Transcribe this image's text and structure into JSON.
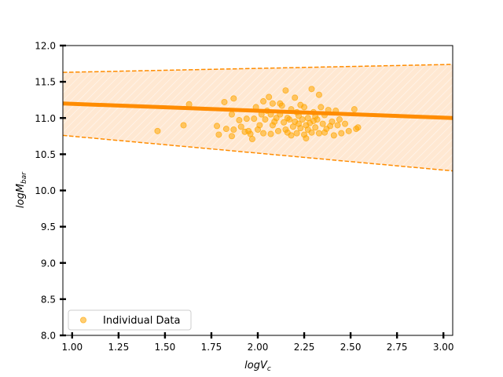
{
  "chart_data": {
    "type": "scatter",
    "xlabel": "logV",
    "xlabel_sub": "c",
    "ylabel": "logM",
    "ylabel_sub": "bar",
    "xlim": [
      0.95,
      3.05
    ],
    "ylim": [
      8.0,
      12.0
    ],
    "x_ticks": [
      1.0,
      1.25,
      1.5,
      1.75,
      2.0,
      2.25,
      2.5,
      2.75,
      3.0
    ],
    "x_tick_labels": [
      "1.00",
      "1.25",
      "1.50",
      "1.75",
      "2.00",
      "2.25",
      "2.50",
      "2.75",
      "3.00"
    ],
    "y_ticks": [
      8.0,
      8.5,
      9.0,
      9.5,
      10.0,
      10.5,
      11.0,
      11.5,
      12.0
    ],
    "y_tick_labels": [
      "8.0",
      "8.5",
      "9.0",
      "9.5",
      "10.0",
      "10.5",
      "11.0",
      "11.5",
      "12.0"
    ],
    "grid": false,
    "legend": {
      "position": "lower-left",
      "entries": [
        "Individual Data"
      ]
    },
    "colors": {
      "points": "#FFA500",
      "fit_line": "#FF8C00",
      "band_fill": "#FFE8D2"
    },
    "fit_line": {
      "x": [
        0.95,
        3.05
      ],
      "y": [
        11.2,
        11.0
      ]
    },
    "upper_bound": {
      "x": [
        0.95,
        3.05
      ],
      "y": [
        11.63,
        11.74
      ]
    },
    "lower_bound": {
      "x": [
        0.95,
        3.05
      ],
      "y": [
        10.76,
        10.27
      ]
    },
    "series": [
      {
        "name": "Individual Data",
        "points": [
          [
            1.46,
            10.82
          ],
          [
            1.6,
            10.9
          ],
          [
            1.63,
            11.19
          ],
          [
            1.78,
            10.89
          ],
          [
            1.79,
            10.77
          ],
          [
            1.82,
            11.22
          ],
          [
            1.83,
            10.85
          ],
          [
            1.86,
            10.75
          ],
          [
            1.86,
            11.05
          ],
          [
            1.87,
            11.27
          ],
          [
            1.87,
            10.84
          ],
          [
            1.9,
            10.97
          ],
          [
            1.91,
            10.88
          ],
          [
            1.93,
            10.81
          ],
          [
            1.94,
            10.99
          ],
          [
            1.95,
            10.82
          ],
          [
            1.96,
            10.78
          ],
          [
            1.97,
            10.71
          ],
          [
            1.98,
            10.99
          ],
          [
            1.99,
            11.15
          ],
          [
            2.0,
            10.84
          ],
          [
            2.01,
            10.9
          ],
          [
            2.02,
            11.05
          ],
          [
            2.03,
            11.23
          ],
          [
            2.04,
            10.98
          ],
          [
            2.05,
            11.1
          ],
          [
            2.06,
            11.29
          ],
          [
            2.07,
            10.78
          ],
          [
            2.07,
            11.05
          ],
          [
            2.08,
            11.2
          ],
          [
            2.09,
            10.95
          ],
          [
            2.1,
            11.0
          ],
          [
            2.11,
            10.82
          ],
          [
            2.12,
            11.2
          ],
          [
            2.13,
            11.17
          ],
          [
            2.14,
            10.94
          ],
          [
            2.15,
            11.38
          ],
          [
            2.15,
            10.84
          ],
          [
            2.16,
            10.8
          ],
          [
            2.17,
            10.98
          ],
          [
            2.18,
            11.12
          ],
          [
            2.19,
            10.88
          ],
          [
            2.2,
            10.95
          ],
          [
            2.2,
            11.28
          ],
          [
            2.21,
            10.79
          ],
          [
            2.22,
            10.92
          ],
          [
            2.22,
            11.03
          ],
          [
            2.23,
            10.86
          ],
          [
            2.24,
            10.98
          ],
          [
            2.25,
            10.77
          ],
          [
            2.25,
            11.15
          ],
          [
            2.26,
            10.9
          ],
          [
            2.27,
            11.0
          ],
          [
            2.27,
            10.84
          ],
          [
            2.28,
            10.93
          ],
          [
            2.29,
            11.4
          ],
          [
            2.29,
            10.8
          ],
          [
            2.3,
            10.96
          ],
          [
            2.3,
            11.08
          ],
          [
            2.31,
            10.87
          ],
          [
            2.32,
            10.98
          ],
          [
            2.33,
            11.32
          ],
          [
            2.33,
            10.79
          ],
          [
            2.34,
            11.15
          ],
          [
            2.35,
            10.92
          ],
          [
            2.36,
            11.04
          ],
          [
            2.37,
            10.85
          ],
          [
            2.38,
            11.11
          ],
          [
            2.39,
            10.89
          ],
          [
            2.4,
            10.95
          ],
          [
            2.41,
            10.76
          ],
          [
            2.42,
            11.1
          ],
          [
            2.43,
            10.9
          ],
          [
            2.44,
            10.98
          ],
          [
            2.45,
            10.79
          ],
          [
            2.47,
            10.92
          ],
          [
            2.49,
            10.82
          ],
          [
            2.52,
            11.12
          ],
          [
            2.53,
            10.85
          ],
          [
            2.54,
            10.87
          ],
          [
            2.03,
            10.79
          ],
          [
            2.08,
            10.9
          ],
          [
            2.12,
            11.05
          ],
          [
            2.18,
            10.76
          ],
          [
            2.23,
            11.18
          ],
          [
            2.26,
            10.72
          ],
          [
            2.31,
            11.02
          ],
          [
            2.36,
            10.8
          ],
          [
            2.21,
            11.08
          ],
          [
            2.16,
            11.0
          ]
        ]
      }
    ]
  }
}
